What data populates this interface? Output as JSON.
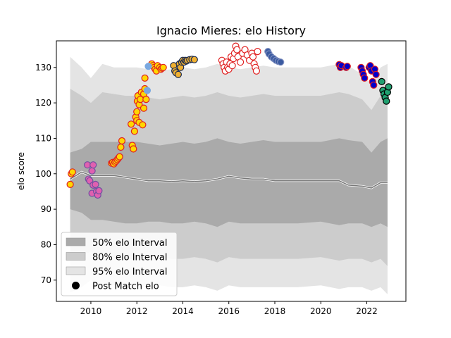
{
  "chart_data": {
    "type": "scatter",
    "title": "Ignacio Mieres: elo History",
    "xlabel": "",
    "ylabel": "elo score",
    "xlim": [
      2008.5,
      2023.7
    ],
    "ylim": [
      64,
      137.5
    ],
    "x_ticks": [
      2010,
      2012,
      2014,
      2016,
      2018,
      2020,
      2022
    ],
    "y_ticks": [
      70,
      80,
      90,
      100,
      110,
      120,
      130
    ],
    "grid": false,
    "legend_position": "lower-left",
    "legend": [
      {
        "label": "50% elo Interval",
        "color": "#aaaaaa"
      },
      {
        "label": "80% elo Interval",
        "color": "#cccccc"
      },
      {
        "label": "95% elo Interval",
        "color": "#e4e4e4"
      },
      {
        "label": "Post Match elo",
        "color": "#000000"
      }
    ],
    "bands": {
      "x": [
        2009.1,
        2009.6,
        2010.0,
        2010.5,
        2011.0,
        2011.5,
        2012.0,
        2012.5,
        2013.0,
        2013.5,
        2014.0,
        2014.5,
        2015.0,
        2015.5,
        2016.0,
        2016.5,
        2017.0,
        2017.5,
        2018.0,
        2019.0,
        2020.0,
        2020.8,
        2021.2,
        2021.8,
        2022.2,
        2022.6,
        2022.9
      ],
      "p95_hi": [
        133,
        130,
        127,
        131,
        130,
        130,
        130,
        129.5,
        129,
        129.5,
        130,
        129.5,
        130,
        131,
        130,
        129.5,
        130,
        130.5,
        130,
        130,
        130,
        131,
        130.5,
        128,
        125,
        130,
        131
      ],
      "p95_lo": [
        66.5,
        68,
        70,
        68,
        68.5,
        68,
        68,
        68.5,
        68.5,
        68,
        68,
        68.5,
        68,
        67,
        68.5,
        68,
        68,
        68,
        68,
        68,
        68.5,
        67.5,
        68,
        68,
        67,
        68,
        66
      ],
      "p80_hi": [
        124,
        122,
        120,
        123,
        122.5,
        122,
        122,
        121.5,
        121,
        121.5,
        122,
        121.5,
        122,
        123,
        122,
        121.5,
        122,
        122.5,
        122,
        122,
        122,
        123,
        122.5,
        121,
        118,
        122,
        123
      ],
      "p80_lo": [
        76,
        77,
        78,
        77,
        76.5,
        76,
        76,
        76.5,
        76.5,
        76,
        76,
        76.5,
        76,
        75,
        76.5,
        76,
        76,
        76,
        76,
        76,
        76.5,
        75.5,
        76,
        76,
        75,
        76,
        74
      ],
      "p50_hi": [
        106,
        107,
        109,
        109,
        109,
        109,
        109,
        108.5,
        108,
        108.5,
        109,
        108.5,
        109,
        110,
        109,
        108.5,
        109,
        109.5,
        109,
        109,
        109,
        110,
        109.5,
        109,
        106,
        109,
        110
      ],
      "p50_lo": [
        90,
        89,
        87,
        87,
        86.5,
        86,
        86,
        86.5,
        86.5,
        86,
        86,
        86.5,
        86,
        85,
        86.5,
        86,
        86,
        86,
        86,
        86,
        86.5,
        85.5,
        86,
        86,
        85,
        86,
        85
      ],
      "median": [
        98.5,
        100.5,
        99.5,
        99.5,
        99.5,
        99,
        98.5,
        98,
        98,
        97.8,
        98,
        97.8,
        98,
        98.5,
        99.3,
        98.8,
        98.5,
        98.5,
        98,
        98,
        98,
        98,
        96.8,
        96.5,
        96,
        97.5,
        97.5
      ]
    },
    "series": [
      {
        "face": "#ffd700",
        "edge": "#e02020",
        "points": [
          [
            2009.1,
            97.0
          ],
          [
            2009.15,
            100.0
          ],
          [
            2009.2,
            100.5
          ]
        ]
      },
      {
        "face": "#e060b0",
        "edge": "#7050a0",
        "points": [
          [
            2009.85,
            102.5
          ],
          [
            2009.9,
            98.5
          ],
          [
            2009.95,
            98
          ],
          [
            2010.05,
            100.8
          ],
          [
            2010.1,
            96.8
          ],
          [
            2010.05,
            94.5
          ],
          [
            2010.1,
            102.5
          ],
          [
            2010.2,
            97
          ],
          [
            2010.25,
            95
          ],
          [
            2010.3,
            94
          ],
          [
            2010.35,
            95.2
          ]
        ]
      },
      {
        "face": "#ffd700",
        "edge": "#e02020",
        "points": [
          [
            2010.9,
            103
          ],
          [
            2010.95,
            103.2
          ],
          [
            2011.0,
            102.8
          ],
          [
            2011.05,
            103.3
          ],
          [
            2011.1,
            103.6
          ],
          [
            2011.15,
            104
          ],
          [
            2011.2,
            104.4
          ],
          [
            2011.25,
            104.8
          ],
          [
            2011.3,
            107.5
          ],
          [
            2011.35,
            109.3
          ],
          [
            2011.75,
            114
          ],
          [
            2011.8,
            108
          ],
          [
            2011.85,
            107
          ],
          [
            2011.9,
            112
          ],
          [
            2011.95,
            116
          ],
          [
            2012.0,
            115
          ],
          [
            2012.0,
            117.5
          ],
          [
            2012.02,
            120.5
          ],
          [
            2012.05,
            122
          ],
          [
            2012.1,
            119.5
          ],
          [
            2012.1,
            114.5
          ],
          [
            2012.15,
            121
          ],
          [
            2012.2,
            123
          ],
          [
            2012.25,
            113.8
          ],
          [
            2012.3,
            118.5
          ],
          [
            2012.3,
            122.5
          ],
          [
            2012.35,
            124
          ],
          [
            2012.4,
            121
          ],
          [
            2012.35,
            127
          ],
          [
            2012.65,
            131
          ],
          [
            2012.7,
            130.5
          ],
          [
            2012.75,
            130
          ],
          [
            2012.8,
            129.5
          ],
          [
            2012.85,
            129
          ],
          [
            2012.9,
            130.5
          ],
          [
            2013.0,
            130
          ],
          [
            2013.05,
            129.5
          ],
          [
            2013.1,
            129.8
          ],
          [
            2013.15,
            130
          ]
        ]
      },
      {
        "face": "#7aa8e0",
        "edge": "#7aa8e0",
        "points": [
          [
            2012.5,
            130.3
          ],
          [
            2012.45,
            123.5
          ]
        ]
      },
      {
        "face": "#f0b030",
        "edge": "#1a2a50",
        "points": [
          [
            2013.6,
            130.5
          ],
          [
            2013.65,
            129
          ],
          [
            2013.7,
            128.5
          ],
          [
            2013.8,
            128
          ],
          [
            2013.85,
            131
          ],
          [
            2013.9,
            130
          ],
          [
            2013.95,
            131.5
          ],
          [
            2014.0,
            132
          ],
          [
            2014.05,
            131.5
          ],
          [
            2014.1,
            132
          ],
          [
            2014.15,
            131.8
          ],
          [
            2014.2,
            132
          ],
          [
            2014.3,
            132.2
          ],
          [
            2014.4,
            132.3
          ],
          [
            2014.5,
            132.2
          ]
        ]
      },
      {
        "face": "#ffffff",
        "edge": "#e02020",
        "points": [
          [
            2015.7,
            132
          ],
          [
            2015.75,
            131
          ],
          [
            2015.8,
            130
          ],
          [
            2015.85,
            129
          ],
          [
            2015.9,
            131.5
          ],
          [
            2015.95,
            130
          ],
          [
            2016.0,
            129.5
          ],
          [
            2016.05,
            131
          ],
          [
            2016.1,
            133
          ],
          [
            2016.15,
            130.5
          ],
          [
            2016.2,
            132.5
          ],
          [
            2016.25,
            134
          ],
          [
            2016.3,
            136
          ],
          [
            2016.35,
            135
          ],
          [
            2016.4,
            133
          ],
          [
            2016.5,
            131.5
          ],
          [
            2016.6,
            134
          ],
          [
            2016.7,
            135
          ],
          [
            2016.8,
            133.5
          ],
          [
            2016.9,
            132
          ],
          [
            2017.0,
            134
          ],
          [
            2017.05,
            133
          ],
          [
            2017.1,
            131
          ],
          [
            2017.15,
            130
          ],
          [
            2017.2,
            129
          ],
          [
            2017.25,
            134.5
          ]
        ]
      },
      {
        "face": "#3a5aa0",
        "edge": "#8090c0",
        "points": [
          [
            2017.7,
            134.5
          ],
          [
            2017.75,
            133.8
          ],
          [
            2017.85,
            133
          ],
          [
            2017.95,
            132.5
          ],
          [
            2018.05,
            132
          ],
          [
            2018.15,
            131.7
          ],
          [
            2018.25,
            131.5
          ]
        ]
      },
      {
        "face": "#0000cc",
        "edge": "#e02020",
        "points": [
          [
            2020.8,
            130.8
          ],
          [
            2020.85,
            130
          ],
          [
            2020.9,
            130.5
          ],
          [
            2021.1,
            130
          ],
          [
            2021.15,
            130.3
          ]
        ]
      },
      {
        "face": "#0000cc",
        "edge": "#e02020",
        "points": [
          [
            2021.75,
            130
          ],
          [
            2021.8,
            129
          ],
          [
            2021.85,
            128
          ],
          [
            2021.9,
            127
          ],
          [
            2022.1,
            130
          ],
          [
            2022.15,
            130.5
          ],
          [
            2022.2,
            129
          ],
          [
            2022.25,
            126
          ],
          [
            2022.3,
            125
          ],
          [
            2022.35,
            129.5
          ],
          [
            2022.4,
            128
          ]
        ]
      },
      {
        "face": "#20a070",
        "edge": "#000000",
        "points": [
          [
            2022.65,
            126
          ],
          [
            2022.7,
            123.5
          ],
          [
            2022.75,
            122.5
          ],
          [
            2022.8,
            121.5
          ],
          [
            2022.85,
            120.5
          ],
          [
            2022.9,
            123
          ],
          [
            2022.95,
            124.5
          ]
        ]
      }
    ]
  }
}
